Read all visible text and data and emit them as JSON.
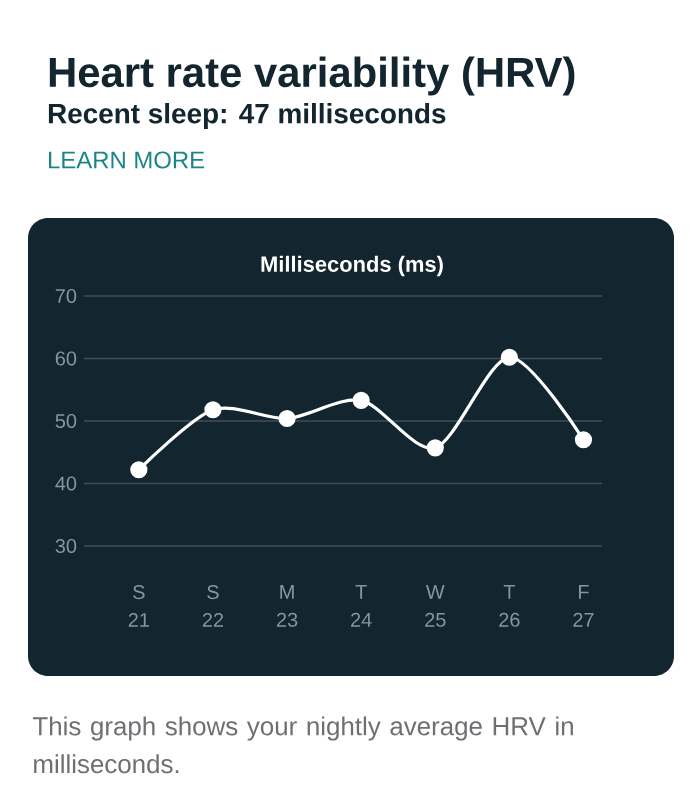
{
  "chart_data": {
    "type": "line",
    "title": "Heart rate variability (HRV)",
    "subtitle": "Recent sleep: 47 milliseconds",
    "ylabel": "Milliseconds (ms)",
    "annotations": [
      "LEARN MORE",
      "This graph shows your nightly average HRV in milliseconds."
    ],
    "categories": [
      "S 21",
      "S 22",
      "M 23",
      "T 24",
      "W 25",
      "T 26",
      "F 27"
    ],
    "series": [
      {
        "color": "#ffffff",
        "values": [
          42.2,
          51.8,
          50.4,
          53.3,
          45.7,
          60.2,
          47
        ]
      }
    ],
    "ylim": [
      30,
      70
    ],
    "yticks": [
      30,
      40,
      50,
      60,
      70
    ],
    "grid": "y",
    "marker": "circle",
    "line_style": "solid"
  }
}
